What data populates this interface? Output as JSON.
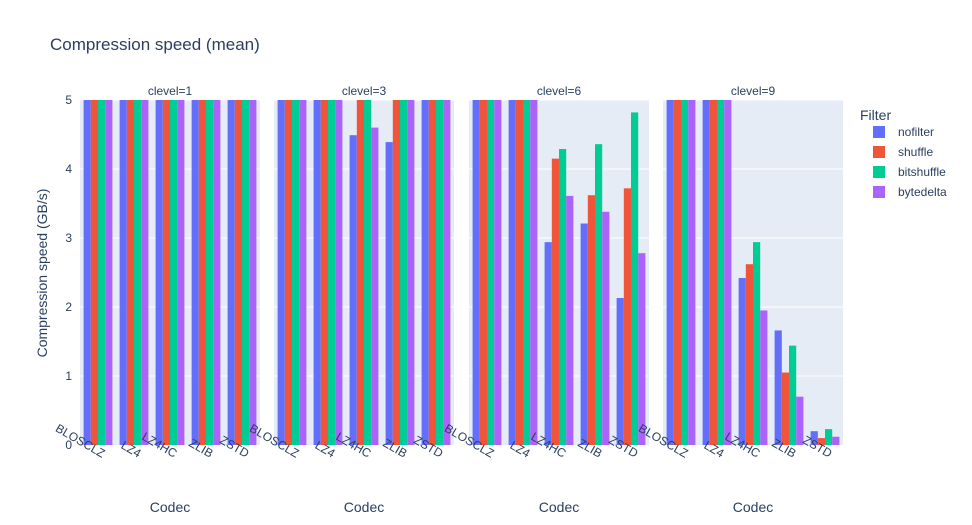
{
  "chart_data": {
    "type": "bar",
    "title": "Compression speed (mean)",
    "xlabel": "Codec",
    "ylabel": "Compression speed (GB/s)",
    "ylim": [
      0,
      5
    ],
    "yticks": [
      0,
      1,
      2,
      3,
      4,
      5
    ],
    "grid": true,
    "legend": {
      "title": "Filter",
      "position": "right"
    },
    "categories": [
      "BLOSCLZ",
      "LZ4",
      "LZ4HC",
      "ZLIB",
      "ZSTD"
    ],
    "series": [
      {
        "name": "nofilter",
        "color": "#636efa"
      },
      {
        "name": "shuffle",
        "color": "#ef553b"
      },
      {
        "name": "bitshuffle",
        "color": "#00cc96"
      },
      {
        "name": "bytedelta",
        "color": "#ab63fa"
      }
    ],
    "facets": [
      {
        "label": "clevel=1",
        "values": [
          [
            5,
            5,
            5,
            5
          ],
          [
            5,
            5,
            5,
            5
          ],
          [
            5,
            5,
            5,
            5
          ],
          [
            5,
            5,
            5,
            5
          ],
          [
            5,
            5,
            5,
            5
          ]
        ]
      },
      {
        "label": "clevel=3",
        "values": [
          [
            5,
            5,
            5,
            5
          ],
          [
            5,
            5,
            5,
            5
          ],
          [
            4.49,
            5,
            5,
            4.6
          ],
          [
            4.39,
            5,
            5,
            5
          ],
          [
            5,
            5,
            5,
            5
          ]
        ]
      },
      {
        "label": "clevel=6",
        "values": [
          [
            5,
            5,
            5,
            5
          ],
          [
            5,
            5,
            5,
            5
          ],
          [
            2.94,
            4.15,
            4.29,
            3.61
          ],
          [
            3.21,
            3.62,
            4.36,
            3.38
          ],
          [
            2.13,
            3.72,
            4.82,
            2.78
          ]
        ]
      },
      {
        "label": "clevel=9",
        "values": [
          [
            5,
            5,
            5,
            5
          ],
          [
            5,
            5,
            5,
            5
          ],
          [
            2.42,
            2.62,
            2.94,
            1.95
          ],
          [
            1.66,
            1.05,
            1.44,
            0.7
          ],
          [
            0.2,
            0.1,
            0.23,
            0.12
          ]
        ]
      }
    ]
  }
}
